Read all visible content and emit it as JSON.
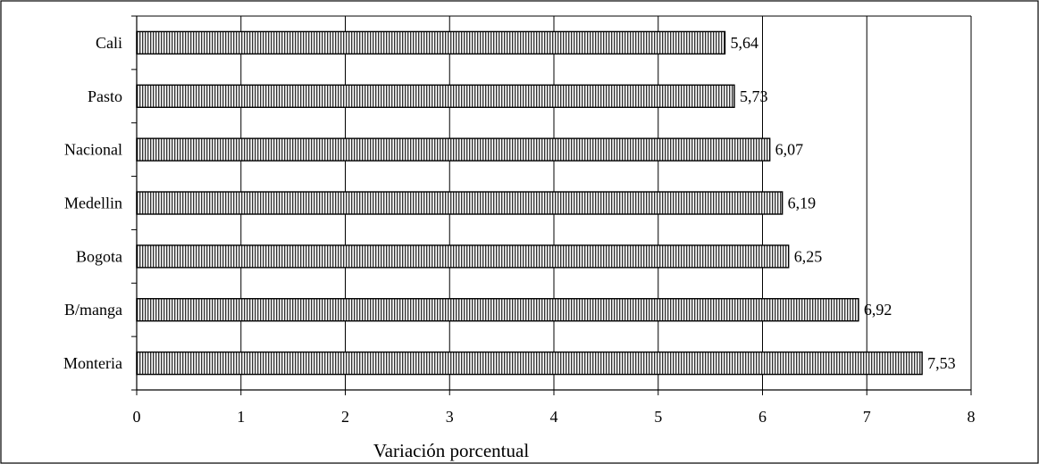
{
  "chart_data": {
    "type": "bar",
    "orientation": "horizontal",
    "categories": [
      "Cali",
      "Pasto",
      "Nacional",
      "Medellin",
      "Bogota",
      "B/manga",
      "Monteria"
    ],
    "values": [
      5.64,
      5.73,
      6.07,
      6.19,
      6.25,
      6.92,
      7.53
    ],
    "data_labels": [
      "5,64",
      "5,73",
      "6,07",
      "6,19",
      "6,25",
      "6,92",
      "7,53"
    ],
    "xlabel": "Variación porcentual",
    "xlim": [
      0,
      8
    ],
    "xticks": [
      "0",
      "1",
      "2",
      "3",
      "4",
      "5",
      "6",
      "7",
      "8"
    ],
    "grid": "vertical",
    "bar_pattern": "vertical-hatch",
    "colors": {
      "bar_line": "#000000",
      "bar_fill": "#ffffff",
      "gridline": "#000000",
      "frame": "#000000"
    }
  }
}
